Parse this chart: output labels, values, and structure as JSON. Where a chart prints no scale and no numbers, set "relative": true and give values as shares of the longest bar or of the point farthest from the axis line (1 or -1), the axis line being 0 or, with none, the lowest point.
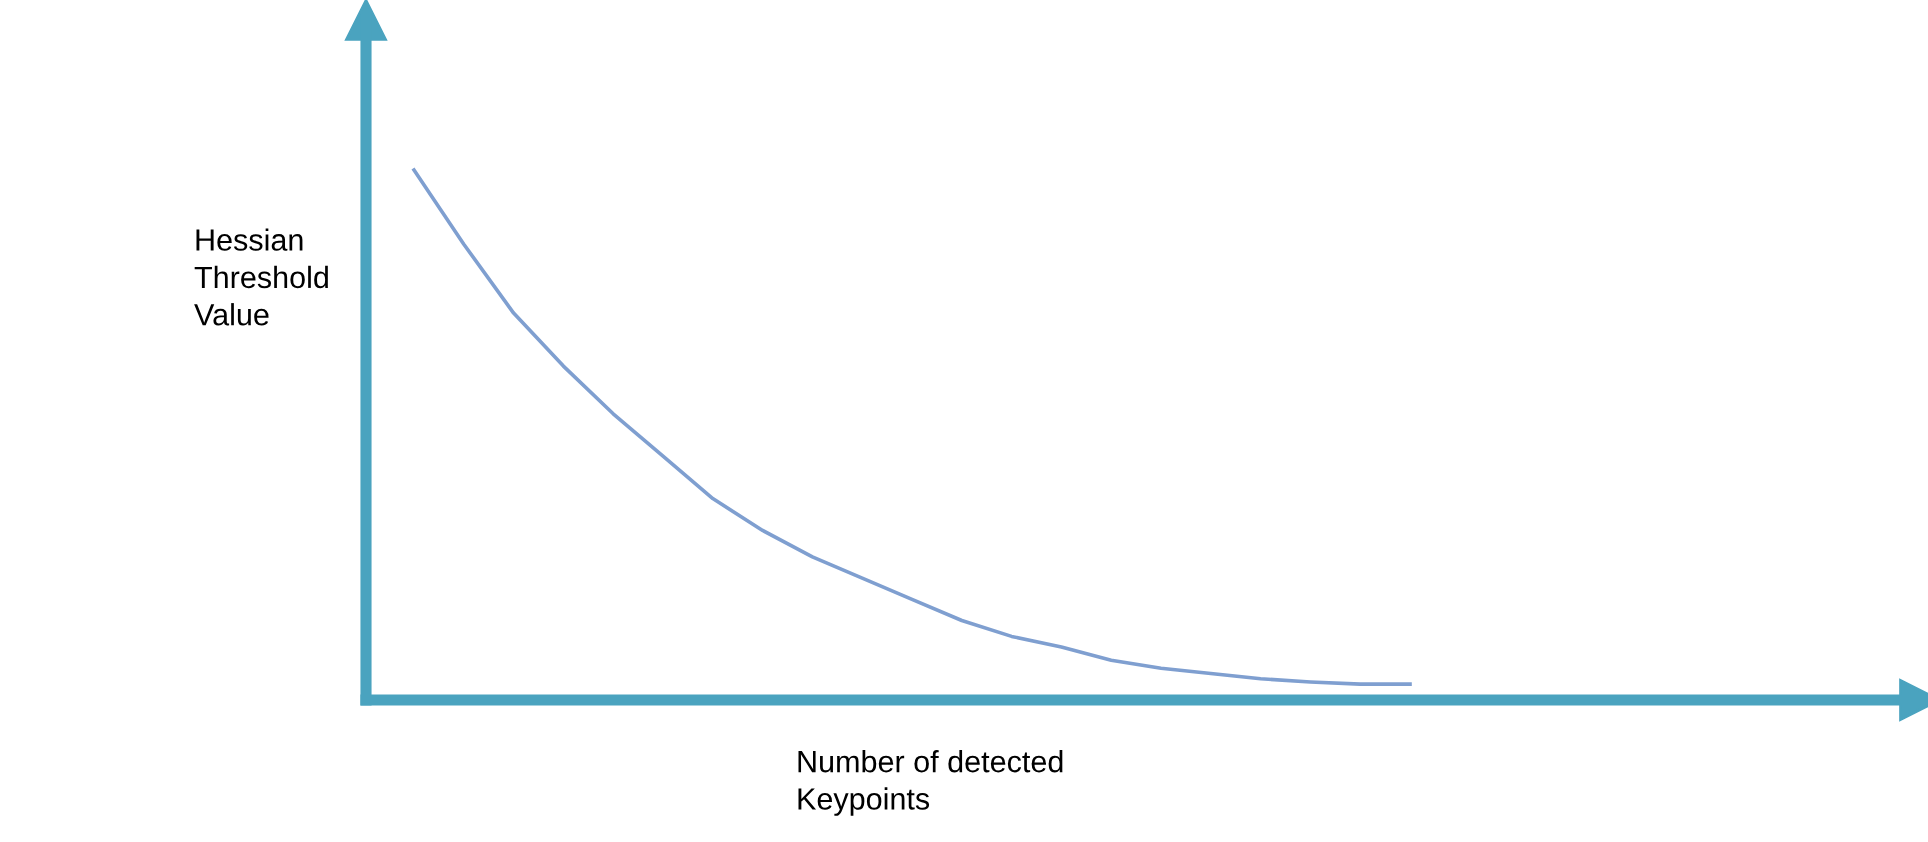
{
  "chart_data": {
    "type": "line",
    "relative": true,
    "xlabel": "Number of detected\nKeypoints",
    "ylabel": "Hessian\nThreshold\nValue",
    "categories": [
      null,
      null,
      null,
      null,
      null,
      null,
      null,
      null,
      null,
      null,
      null,
      null,
      null,
      null,
      null,
      null,
      null,
      null,
      null,
      null,
      null
    ],
    "series": [
      {
        "color": "#7f9fd0",
        "values": [
          1,
          0.86,
          0.73,
          0.63,
          0.54,
          0.46,
          0.38,
          0.32,
          0.27,
          0.23,
          0.19,
          0.15,
          0.12,
          0.1,
          0.075,
          0.06,
          0.05,
          0.04,
          0.034,
          0.03,
          0.03
        ]
      }
    ],
    "grid": false,
    "legend": false,
    "marker": "none",
    "line_style": "solid"
  }
}
